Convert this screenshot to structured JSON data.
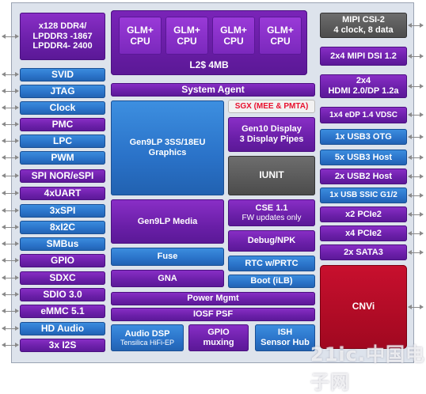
{
  "left_column": [
    {
      "id": "ddr",
      "lines": [
        "x128 DDR4/",
        "LPDDR3 -1867",
        "LPDDR4- 2400"
      ]
    },
    {
      "id": "svid",
      "label": "SVID"
    },
    {
      "id": "jtag",
      "label": "JTAG"
    },
    {
      "id": "clock",
      "label": "Clock"
    },
    {
      "id": "pmc",
      "label": "PMC"
    },
    {
      "id": "lpc",
      "label": "LPC"
    },
    {
      "id": "pwm",
      "label": "PWM"
    },
    {
      "id": "spi-nor",
      "label": "SPI NOR/eSPI"
    },
    {
      "id": "uart",
      "label": "4xUART"
    },
    {
      "id": "spi3",
      "label": "3xSPI"
    },
    {
      "id": "i2c",
      "label": "8xI2C"
    },
    {
      "id": "smbus",
      "label": "SMBus"
    },
    {
      "id": "gpio",
      "label": "GPIO"
    },
    {
      "id": "sdxc",
      "label": "SDXC"
    },
    {
      "id": "sdio",
      "label": "SDIO 3.0"
    },
    {
      "id": "emmc",
      "label": "eMMC 5.1"
    },
    {
      "id": "hdaudio",
      "label": "HD Audio"
    },
    {
      "id": "i2s",
      "label": "3x I2S"
    }
  ],
  "center": {
    "cpu_label_1": "GLM+",
    "cpu_label_2": "CPU",
    "l2": "L2$ 4MB",
    "system_agent": "System Agent",
    "graphics": [
      "Gen9LP 3SS/18EU",
      "Graphics"
    ],
    "media": "Gen9LP Media",
    "sgx": "SGX (MEE & PMTA)",
    "display": [
      "Gen10 Display",
      "3 Display Pipes"
    ],
    "iunit": "IUNIT",
    "cse": [
      "CSE 1.1",
      "FW updates only"
    ],
    "debug": "Debug/NPK",
    "fuse": "Fuse",
    "rtc": "RTC w/PRTC",
    "gna": "GNA",
    "boot": "Boot (iLB)",
    "power": "Power Mgmt",
    "iosf": "IOSF PSF",
    "audio_dsp": [
      "Audio DSP",
      "Tensilica HiFi-EP"
    ],
    "gpio_mux": [
      "GPIO",
      "muxing"
    ],
    "ish": [
      "ISH",
      "Sensor Hub"
    ]
  },
  "right_column": [
    {
      "id": "csi",
      "lines": [
        "MIPI CSI-2",
        "4 clock, 8 data"
      ]
    },
    {
      "id": "dsi",
      "label": "2x4 MIPI DSI 1.2"
    },
    {
      "id": "hdmi",
      "lines": [
        "2x4",
        "HDMI 2.0/DP 1.2a"
      ]
    },
    {
      "id": "edp",
      "label": "1x4 eDP 1.4 VDSC"
    },
    {
      "id": "otg",
      "label": "1x USB3 OTG"
    },
    {
      "id": "usb3host",
      "label": "5x USB3 Host"
    },
    {
      "id": "usb2host",
      "label": "2x USB2 Host"
    },
    {
      "id": "ssic",
      "label": "1x USB SSIC G1/2"
    },
    {
      "id": "pcie2a",
      "label": "x2 PCIe2"
    },
    {
      "id": "pcie2b",
      "label": "x4 PCIe2"
    },
    {
      "id": "sata",
      "label": "2x SATA3"
    },
    {
      "id": "cnvi",
      "label": "CNVi"
    }
  ],
  "watermark": "21ic.中国电子网",
  "colors": {
    "purple": "#6a1fa8",
    "blue": "#2a72c8",
    "gray": "#4b4b4b",
    "red": "#c8102e",
    "sgx_text": "#e8102e"
  }
}
